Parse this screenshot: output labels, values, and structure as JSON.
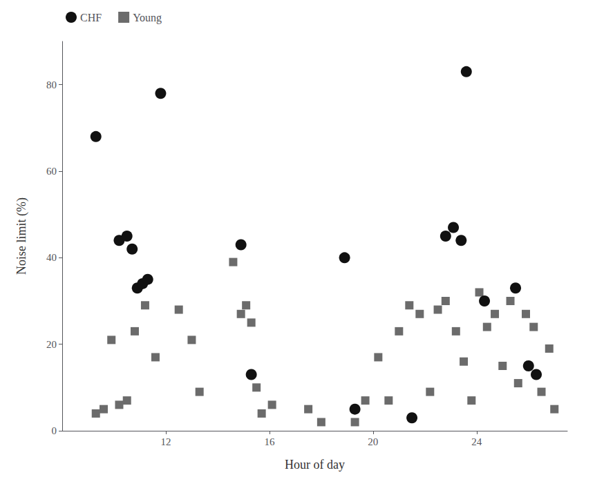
{
  "chart_data": {
    "type": "scatter",
    "xlabel": "Hour of day",
    "ylabel": "Noise limit (%)",
    "xlim": [
      8.0,
      27.5
    ],
    "ylim": [
      0,
      90
    ],
    "xticks": [
      12,
      16,
      20,
      24
    ],
    "yticks": [
      0,
      20,
      40,
      60,
      80
    ],
    "grid": false,
    "legend": "upper left",
    "series": [
      {
        "name": "Young",
        "color": "#6b6b6b",
        "marker": "square",
        "x": [
          9.3,
          9.6,
          9.9,
          10.2,
          10.5,
          10.8,
          11.2,
          11.6,
          12.5,
          13.0,
          13.3,
          14.6,
          14.9,
          15.1,
          15.3,
          15.5,
          15.7,
          16.1,
          17.5,
          18.0,
          19.3,
          19.7,
          20.2,
          20.6,
          21.0,
          21.4,
          21.8,
          22.2,
          22.5,
          22.8,
          23.2,
          23.5,
          23.8,
          24.1,
          24.4,
          24.7,
          25.0,
          25.3,
          25.6,
          25.9,
          26.2,
          26.5,
          26.8,
          27.0
        ],
        "values": [
          4,
          5,
          21,
          6,
          7,
          23,
          29,
          17,
          28,
          21,
          9,
          39,
          27,
          29,
          25,
          10,
          4,
          6,
          5,
          2,
          2,
          7,
          17,
          7,
          23,
          29,
          27,
          9,
          28,
          30,
          23,
          16,
          7,
          32,
          24,
          27,
          15,
          30,
          11,
          27,
          24,
          9,
          19,
          5
        ]
      },
      {
        "name": "CHF",
        "color": "#111111",
        "marker": "circle",
        "x": [
          9.3,
          11.8,
          10.2,
          10.5,
          10.7,
          10.9,
          11.1,
          11.3,
          14.9,
          15.3,
          18.9,
          19.3,
          21.5,
          22.8,
          23.1,
          23.4,
          23.6,
          24.3,
          25.5,
          26.0,
          26.3
        ],
        "values": [
          68,
          78,
          44,
          45,
          42,
          33,
          34,
          35,
          43,
          13,
          40,
          5,
          3,
          45,
          47,
          44,
          83,
          30,
          33,
          15,
          13
        ]
      }
    ]
  }
}
